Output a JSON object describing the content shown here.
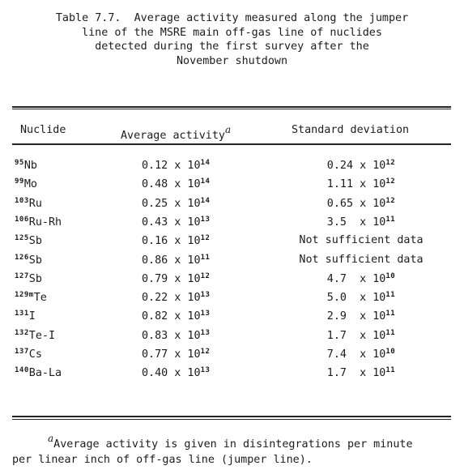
{
  "caption": {
    "lines": [
      "Table 7.7.  Average activity measured along the jumper",
      "line of the MSRE main off-gas line of nuclides",
      "detected during the first survey after the",
      "November shutdown"
    ]
  },
  "table": {
    "headers": {
      "nuclide": "Nuclide",
      "activity": "Average activity",
      "activity_footnote_mark": "a",
      "stddev": "Standard deviation"
    },
    "rows": [
      {
        "mass": "95",
        "element": "Nb",
        "activity": "0.12 x 10",
        "activity_exp": "14",
        "stddev": "0.24 x 10",
        "stddev_exp": "12"
      },
      {
        "mass": "99",
        "element": "Mo",
        "activity": "0.48 x 10",
        "activity_exp": "14",
        "stddev": "1.11 x 10",
        "stddev_exp": "12"
      },
      {
        "mass": "103",
        "element": "Ru",
        "activity": "0.25 x 10",
        "activity_exp": "14",
        "stddev": "0.65 x 10",
        "stddev_exp": "12"
      },
      {
        "mass": "106",
        "element": "Ru-Rh",
        "activity": "0.43 x 10",
        "activity_exp": "13",
        "stddev": "3.5  x 10",
        "stddev_exp": "11"
      },
      {
        "mass": "125",
        "element": "Sb",
        "activity": "0.16 x 10",
        "activity_exp": "12",
        "stddev": "Not sufficient data",
        "stddev_exp": ""
      },
      {
        "mass": "126",
        "element": "Sb",
        "activity": "0.86 x 10",
        "activity_exp": "11",
        "stddev": "Not sufficient data",
        "stddev_exp": ""
      },
      {
        "mass": "127",
        "element": "Sb",
        "activity": "0.79 x 10",
        "activity_exp": "12",
        "stddev": "4.7  x 10",
        "stddev_exp": "10"
      },
      {
        "mass": "129m",
        "element": "Te",
        "activity": "0.22 x 10",
        "activity_exp": "13",
        "stddev": "5.0  x 10",
        "stddev_exp": "11"
      },
      {
        "mass": "131",
        "element": "I",
        "activity": "0.82 x 10",
        "activity_exp": "13",
        "stddev": "2.9  x 10",
        "stddev_exp": "11"
      },
      {
        "mass": "132",
        "element": "Te-I",
        "activity": "0.83 x 10",
        "activity_exp": "13",
        "stddev": "1.7  x 10",
        "stddev_exp": "11"
      },
      {
        "mass": "137",
        "element": "Cs",
        "activity": "0.77 x 10",
        "activity_exp": "12",
        "stddev": "7.4  x 10",
        "stddev_exp": "10"
      },
      {
        "mass": "140",
        "element": "Ba-La",
        "activity": "0.40 x 10",
        "activity_exp": "13",
        "stddev": "1.7  x 10",
        "stddev_exp": "11"
      }
    ]
  },
  "footnote": {
    "mark": "a",
    "line1": "Average activity is given in disintegrations per minute",
    "line2": "per linear inch of off-gas line (jumper line)."
  }
}
